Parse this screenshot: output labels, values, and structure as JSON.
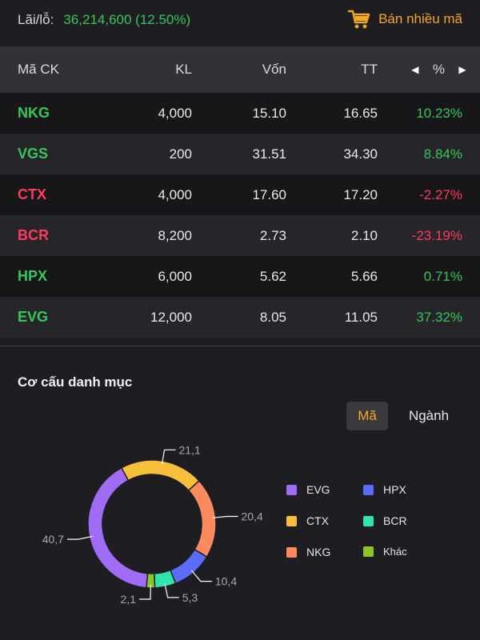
{
  "summary": {
    "pnl_label": "Lãi/lỗ:",
    "pnl_value": "36,214,600 (12.50%)",
    "sell_multi_label": "Bán nhiều mã"
  },
  "table": {
    "headers": {
      "code": "Mã CK",
      "kl": "KL",
      "von": "Vốn",
      "tt": "TT",
      "pct": "%"
    },
    "rows": [
      {
        "code": "NKG",
        "kl": "4,000",
        "von": "15.10",
        "tt": "16.65",
        "pct": "10.23%",
        "trend": "up"
      },
      {
        "code": "VGS",
        "kl": "200",
        "von": "31.51",
        "tt": "34.30",
        "pct": "8.84%",
        "trend": "up"
      },
      {
        "code": "CTX",
        "kl": "4,000",
        "von": "17.60",
        "tt": "17.20",
        "pct": "-2.27%",
        "trend": "down"
      },
      {
        "code": "BCR",
        "kl": "8,200",
        "von": "2.73",
        "tt": "2.10",
        "pct": "-23.19%",
        "trend": "down"
      },
      {
        "code": "HPX",
        "kl": "6,000",
        "von": "5.62",
        "tt": "5.66",
        "pct": "0.71%",
        "trend": "up"
      },
      {
        "code": "EVG",
        "kl": "12,000",
        "von": "8.05",
        "tt": "11.05",
        "pct": "37.32%",
        "trend": "up"
      }
    ]
  },
  "portfolio": {
    "title": "Cơ cấu danh mục",
    "toggle_ma": "Mã",
    "toggle_nganh": "Ngành",
    "active_toggle": "Mã"
  },
  "colors": {
    "up": "#34c759",
    "down": "#ff3b5c",
    "accent": "#f5a623"
  },
  "chart_data": {
    "type": "pie",
    "slices": [
      {
        "name": "EVG",
        "value": 40.7,
        "label": "40,7",
        "color": "#a06cf6"
      },
      {
        "name": "CTX",
        "value": 21.1,
        "label": "21,1",
        "color": "#f8bf3b"
      },
      {
        "name": "NKG",
        "value": 20.4,
        "label": "20,4",
        "color": "#fb8a5f"
      },
      {
        "name": "HPX",
        "value": 10.4,
        "label": "10,4",
        "color": "#5b6bfb"
      },
      {
        "name": "BCR",
        "value": 5.3,
        "label": "5,3",
        "color": "#2ee6ad"
      },
      {
        "name": "Khác",
        "value": 2.1,
        "label": "2,1",
        "color": "#8ac628"
      }
    ],
    "legend": [
      "EVG",
      "HPX",
      "CTX",
      "BCR",
      "NKG",
      "Khác"
    ]
  }
}
